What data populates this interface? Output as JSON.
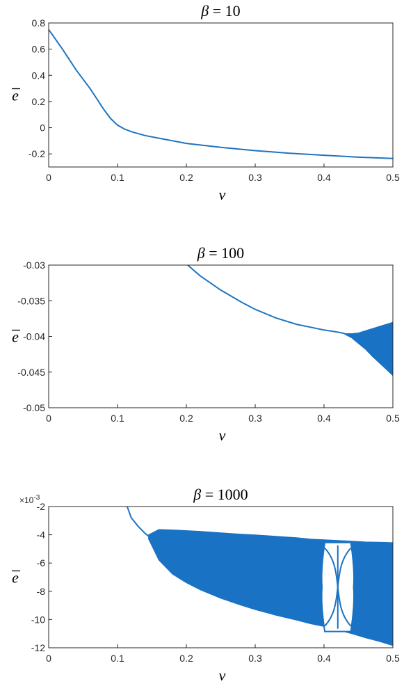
{
  "colors": {
    "series": "#1f74c0",
    "axis": "#262626",
    "band": "#1a72c4"
  },
  "chart_data": [
    {
      "type": "line",
      "title": {
        "greek": "β",
        "rest": " = 10"
      },
      "xlabel": "v",
      "ylabel": "e",
      "xlim": [
        0,
        0.5
      ],
      "ylim": [
        -0.3,
        0.8
      ],
      "xticks": [
        "0",
        "0.1",
        "0.2",
        "0.3",
        "0.4",
        "0.5"
      ],
      "yticks": [
        "-0.2",
        "0",
        "0.2",
        "0.4",
        "0.6",
        "0.8"
      ],
      "series": [
        {
          "x": [
            0,
            0.02,
            0.04,
            0.06,
            0.08,
            0.09,
            0.1,
            0.11,
            0.12,
            0.14,
            0.16,
            0.2,
            0.25,
            0.3,
            0.35,
            0.4,
            0.45,
            0.5
          ],
          "y": [
            0.75,
            0.6,
            0.44,
            0.3,
            0.14,
            0.07,
            0.02,
            -0.01,
            -0.03,
            -0.06,
            -0.08,
            -0.12,
            -0.15,
            -0.175,
            -0.195,
            -0.21,
            -0.225,
            -0.235
          ]
        }
      ]
    },
    {
      "type": "line",
      "title": {
        "greek": "β",
        "rest": " = 100"
      },
      "xlabel": "v",
      "ylabel": "e",
      "xlim": [
        0,
        0.5
      ],
      "ylim": [
        -0.05,
        -0.03
      ],
      "xticks": [
        "0",
        "0.1",
        "0.2",
        "0.3",
        "0.4",
        "0.5"
      ],
      "yticks": [
        "-0.05",
        "-0.045",
        "-0.04",
        "-0.035",
        "-0.03"
      ],
      "series": [
        {
          "x": [
            0.202,
            0.22,
            0.25,
            0.28,
            0.3,
            0.33,
            0.36,
            0.38,
            0.4,
            0.42,
            0.43
          ],
          "y": [
            -0.03,
            -0.0315,
            -0.0335,
            -0.0352,
            -0.0362,
            -0.0374,
            -0.0383,
            -0.0387,
            -0.0391,
            -0.0394,
            -0.0396
          ]
        }
      ],
      "band": {
        "x": [
          0.43,
          0.44,
          0.45,
          0.46,
          0.47,
          0.48,
          0.49,
          0.5
        ],
        "upper": [
          -0.0396,
          -0.0396,
          -0.0395,
          -0.0392,
          -0.0389,
          -0.0386,
          -0.0383,
          -0.038
        ],
        "lower": [
          -0.0397,
          -0.0402,
          -0.041,
          -0.0418,
          -0.0428,
          -0.0437,
          -0.0446,
          -0.0455
        ]
      }
    },
    {
      "type": "scatter",
      "title": {
        "greek": "β",
        "rest": " = 1000"
      },
      "xlabel": "v",
      "ylabel": "e",
      "exponent": {
        "base": "×10",
        "power": "-3"
      },
      "xlim": [
        0,
        0.5
      ],
      "ylim": [
        -12,
        -2
      ],
      "xticks": [
        "0",
        "0.1",
        "0.2",
        "0.3",
        "0.4",
        "0.5"
      ],
      "yticks": [
        "-12",
        "-10",
        "-8",
        "-6",
        "-4",
        "-2"
      ],
      "series": [
        {
          "x": [
            0.114,
            0.12,
            0.13,
            0.14,
            0.15
          ],
          "y": [
            -2.0,
            -2.8,
            -3.4,
            -3.9,
            -4.3
          ]
        }
      ],
      "band": {
        "x": [
          0.145,
          0.16,
          0.18,
          0.2,
          0.22,
          0.25,
          0.28,
          0.3,
          0.33,
          0.36,
          0.38,
          0.4,
          0.42,
          0.44,
          0.46,
          0.48,
          0.5
        ],
        "upper": [
          -4.0,
          -3.62,
          -3.65,
          -3.7,
          -3.75,
          -3.85,
          -3.95,
          -4.0,
          -4.1,
          -4.2,
          -4.3,
          -4.35,
          -4.4,
          -4.45,
          -4.5,
          -4.52,
          -4.55
        ],
        "lower": [
          -4.3,
          -5.8,
          -6.8,
          -7.4,
          -7.9,
          -8.5,
          -9.0,
          -9.3,
          -9.7,
          -10.05,
          -10.3,
          -10.5,
          -10.75,
          -11.0,
          -11.3,
          -11.55,
          -11.85
        ]
      },
      "window": {
        "x": [
          0.395,
          0.445
        ],
        "upper": -4.55,
        "lower": -10.85
      }
    }
  ]
}
